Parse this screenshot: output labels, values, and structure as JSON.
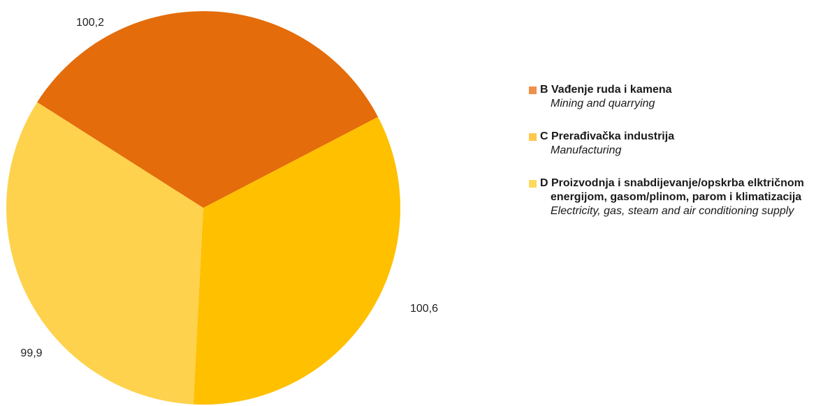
{
  "chart_data": {
    "type": "pie",
    "title": "",
    "slices": [
      {
        "label": "B Vađenje ruda i kamena",
        "value": 100.2,
        "display": "100,2",
        "color": "#e46c0a"
      },
      {
        "label": "C Prerađivačka industrija",
        "value": 100.6,
        "display": "100,6",
        "color": "#ffc000"
      },
      {
        "label": "D Proizvodnja i snabdijevanje/opskrba elktričnom energijom, gasom/plinom, parom i klimatizacija",
        "value": 99.9,
        "display": "99,9",
        "color": "#ffd24d"
      }
    ],
    "legend_position": "right"
  },
  "legend": {
    "items": [
      {
        "title": "B Vađenje ruda i kamena",
        "subtitle": "Mining and quarrying",
        "color": "#f0914a"
      },
      {
        "title": "C Prerađivačka industrija",
        "subtitle": "Manufacturing",
        "color": "#ffc94d"
      },
      {
        "title_line1": "D Proizvodnja i snabdijevanje/opskrba elktričnom",
        "title_line2": "energijom, gasom/plinom, parom i klimatizacija",
        "subtitle": "Electricity, gas, steam and air conditioning supply",
        "color": "#ffd95e"
      }
    ]
  }
}
